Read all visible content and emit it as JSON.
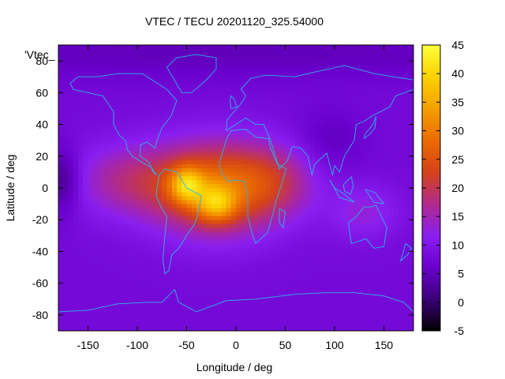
{
  "chart_data": {
    "type": "heatmap",
    "title": "VTEC / TECU 20201120_325.54000",
    "xlabel": "Longitude / deg",
    "ylabel": "Latitude / deg",
    "legend_label": "'Vtec_",
    "xlim": [
      -180,
      180
    ],
    "ylim": [
      -90,
      90
    ],
    "x_ticks": [
      -150,
      -100,
      -50,
      0,
      50,
      100,
      150
    ],
    "y_ticks": [
      -80,
      -60,
      -40,
      -20,
      0,
      20,
      40,
      60,
      80
    ],
    "colorbar": {
      "range": [
        -5,
        45
      ],
      "ticks": [
        -5,
        0,
        5,
        10,
        15,
        20,
        25,
        30,
        35,
        40,
        45
      ],
      "palette": [
        "#000000",
        "#3b0077",
        "#6a00cc",
        "#8a1ef0",
        "#b02a8c",
        "#d4421a",
        "#ea6a00",
        "#f59f00",
        "#fbd100",
        "#ffff3a"
      ]
    },
    "field": {
      "background_tecu": 8,
      "features": [
        {
          "name": "equatorial-crest",
          "lon": -20,
          "lat": 0,
          "sigma_lon": 45,
          "sigma_lat": 20,
          "amp_tecu": 20
        },
        {
          "name": "south-american-peak",
          "lon": -50,
          "lat": 2,
          "sigma_lon": 12,
          "sigma_lat": 8,
          "amp_tecu": 16
        },
        {
          "name": "south-atlantic-peak",
          "lon": -20,
          "lat": -10,
          "sigma_lon": 14,
          "sigma_lat": 8,
          "amp_tecu": 14
        },
        {
          "name": "western-spread",
          "lon": -110,
          "lat": 5,
          "sigma_lon": 40,
          "sigma_lat": 16,
          "amp_tecu": 8
        },
        {
          "name": "eastern-spread",
          "lon": 40,
          "lat": 5,
          "sigma_lon": 30,
          "sigma_lat": 16,
          "amp_tecu": 7
        },
        {
          "name": "pacific-low",
          "lon": -175,
          "lat": 5,
          "sigma_lon": 12,
          "sigma_lat": 14,
          "amp_tecu": -7
        },
        {
          "name": "asia-low",
          "lon": 95,
          "lat": 30,
          "sigma_lon": 25,
          "sigma_lat": 14,
          "amp_tecu": -3
        },
        {
          "name": "australia-high",
          "lon": 130,
          "lat": -15,
          "sigma_lon": 25,
          "sigma_lat": 12,
          "amp_tecu": 5
        },
        {
          "name": "north-polar-low",
          "lon": 0,
          "lat": 85,
          "sigma_lon": 400,
          "sigma_lat": 12,
          "amp_tecu": -3
        }
      ]
    },
    "coastlines": [
      {
        "name": "north-america",
        "points": [
          [
            -168,
            66
          ],
          [
            -160,
            70
          ],
          [
            -140,
            70
          ],
          [
            -120,
            72
          ],
          [
            -95,
            72
          ],
          [
            -80,
            66
          ],
          [
            -70,
            62
          ],
          [
            -60,
            55
          ],
          [
            -66,
            45
          ],
          [
            -75,
            38
          ],
          [
            -80,
            30
          ],
          [
            -82,
            25
          ],
          [
            -90,
            29
          ],
          [
            -97,
            27
          ],
          [
            -97,
            20
          ],
          [
            -88,
            16
          ],
          [
            -84,
            10
          ],
          [
            -80,
            8
          ],
          [
            -86,
            13
          ],
          [
            -95,
            16
          ],
          [
            -105,
            20
          ],
          [
            -110,
            24
          ],
          [
            -112,
            30
          ],
          [
            -118,
            33
          ],
          [
            -124,
            40
          ],
          [
            -124,
            48
          ],
          [
            -135,
            58
          ],
          [
            -150,
            60
          ],
          [
            -165,
            62
          ],
          [
            -168,
            66
          ]
        ]
      },
      {
        "name": "greenland",
        "points": [
          [
            -55,
            60
          ],
          [
            -45,
            60
          ],
          [
            -30,
            68
          ],
          [
            -20,
            75
          ],
          [
            -20,
            82
          ],
          [
            -40,
            84
          ],
          [
            -60,
            82
          ],
          [
            -70,
            76
          ],
          [
            -55,
            60
          ]
        ]
      },
      {
        "name": "south-america",
        "points": [
          [
            -78,
            8
          ],
          [
            -72,
            12
          ],
          [
            -60,
            10
          ],
          [
            -50,
            0
          ],
          [
            -35,
            -5
          ],
          [
            -38,
            -15
          ],
          [
            -42,
            -23
          ],
          [
            -48,
            -28
          ],
          [
            -58,
            -38
          ],
          [
            -65,
            -42
          ],
          [
            -68,
            -52
          ],
          [
            -72,
            -54
          ],
          [
            -74,
            -45
          ],
          [
            -72,
            -30
          ],
          [
            -70,
            -18
          ],
          [
            -76,
            -12
          ],
          [
            -81,
            -5
          ],
          [
            -80,
            0
          ],
          [
            -78,
            8
          ]
        ]
      },
      {
        "name": "africa",
        "points": [
          [
            -17,
            15
          ],
          [
            -10,
            30
          ],
          [
            -5,
            36
          ],
          [
            10,
            37
          ],
          [
            20,
            32
          ],
          [
            33,
            31
          ],
          [
            35,
            25
          ],
          [
            42,
            15
          ],
          [
            51,
            12
          ],
          [
            45,
            0
          ],
          [
            40,
            -10
          ],
          [
            36,
            -20
          ],
          [
            32,
            -28
          ],
          [
            20,
            -35
          ],
          [
            17,
            -30
          ],
          [
            12,
            -18
          ],
          [
            12,
            -5
          ],
          [
            9,
            4
          ],
          [
            0,
            5
          ],
          [
            -8,
            4
          ],
          [
            -15,
            10
          ],
          [
            -17,
            15
          ]
        ]
      },
      {
        "name": "madagascar",
        "points": [
          [
            44,
            -13
          ],
          [
            50,
            -15
          ],
          [
            48,
            -25
          ],
          [
            44,
            -22
          ],
          [
            44,
            -13
          ]
        ]
      },
      {
        "name": "eurasia",
        "points": [
          [
            -10,
            36
          ],
          [
            -9,
            43
          ],
          [
            -2,
            48
          ],
          [
            5,
            53
          ],
          [
            10,
            58
          ],
          [
            5,
            62
          ],
          [
            15,
            69
          ],
          [
            30,
            71
          ],
          [
            60,
            70
          ],
          [
            80,
            73
          ],
          [
            110,
            77
          ],
          [
            140,
            72
          ],
          [
            160,
            70
          ],
          [
            180,
            68
          ],
          [
            180,
            62
          ],
          [
            162,
            58
          ],
          [
            156,
            51
          ],
          [
            140,
            46
          ],
          [
            130,
            42
          ],
          [
            122,
            40
          ],
          [
            120,
            30
          ],
          [
            110,
            20
          ],
          [
            105,
            10
          ],
          [
            100,
            14
          ],
          [
            98,
            8
          ],
          [
            92,
            22
          ],
          [
            80,
            15
          ],
          [
            77,
            8
          ],
          [
            73,
            20
          ],
          [
            66,
            25
          ],
          [
            57,
            26
          ],
          [
            52,
            17
          ],
          [
            44,
            12
          ],
          [
            35,
            30
          ],
          [
            28,
            40
          ],
          [
            20,
            40
          ],
          [
            10,
            44
          ],
          [
            0,
            40
          ],
          [
            -10,
            36
          ]
        ]
      },
      {
        "name": "uk",
        "points": [
          [
            -5,
            50
          ],
          [
            1,
            51
          ],
          [
            -2,
            56
          ],
          [
            -5,
            58
          ],
          [
            -6,
            55
          ],
          [
            -5,
            50
          ]
        ]
      },
      {
        "name": "japan",
        "points": [
          [
            130,
            31
          ],
          [
            136,
            34
          ],
          [
            141,
            38
          ],
          [
            142,
            45
          ],
          [
            139,
            40
          ],
          [
            131,
            34
          ],
          [
            130,
            31
          ]
        ]
      },
      {
        "name": "australia",
        "points": [
          [
            114,
            -22
          ],
          [
            122,
            -18
          ],
          [
            130,
            -12
          ],
          [
            137,
            -12
          ],
          [
            142,
            -11
          ],
          [
            145,
            -15
          ],
          [
            153,
            -25
          ],
          [
            150,
            -37
          ],
          [
            140,
            -38
          ],
          [
            132,
            -32
          ],
          [
            117,
            -35
          ],
          [
            114,
            -22
          ]
        ]
      },
      {
        "name": "indonesia",
        "points": [
          [
            95,
            5
          ],
          [
            105,
            -6
          ],
          [
            115,
            -8
          ],
          [
            120,
            -9
          ],
          [
            110,
            -4
          ],
          [
            100,
            0
          ],
          [
            95,
            5
          ]
        ]
      },
      {
        "name": "borneo",
        "points": [
          [
            109,
            2
          ],
          [
            117,
            7
          ],
          [
            119,
            1
          ],
          [
            116,
            -4
          ],
          [
            110,
            -2
          ],
          [
            109,
            2
          ]
        ]
      },
      {
        "name": "new-guinea",
        "points": [
          [
            131,
            -1
          ],
          [
            141,
            -3
          ],
          [
            150,
            -10
          ],
          [
            140,
            -9
          ],
          [
            131,
            -1
          ]
        ]
      },
      {
        "name": "new-zealand",
        "points": [
          [
            172,
            -35
          ],
          [
            178,
            -38
          ],
          [
            174,
            -42
          ],
          [
            167,
            -46
          ],
          [
            172,
            -35
          ]
        ]
      },
      {
        "name": "antarctica",
        "points": [
          [
            -180,
            -78
          ],
          [
            -150,
            -77
          ],
          [
            -120,
            -73
          ],
          [
            -90,
            -72
          ],
          [
            -75,
            -72
          ],
          [
            -62,
            -64
          ],
          [
            -58,
            -72
          ],
          [
            -40,
            -78
          ],
          [
            -10,
            -71
          ],
          [
            20,
            -70
          ],
          [
            60,
            -67
          ],
          [
            90,
            -66
          ],
          [
            120,
            -66
          ],
          [
            150,
            -68
          ],
          [
            170,
            -72
          ],
          [
            180,
            -78
          ]
        ]
      }
    ]
  }
}
